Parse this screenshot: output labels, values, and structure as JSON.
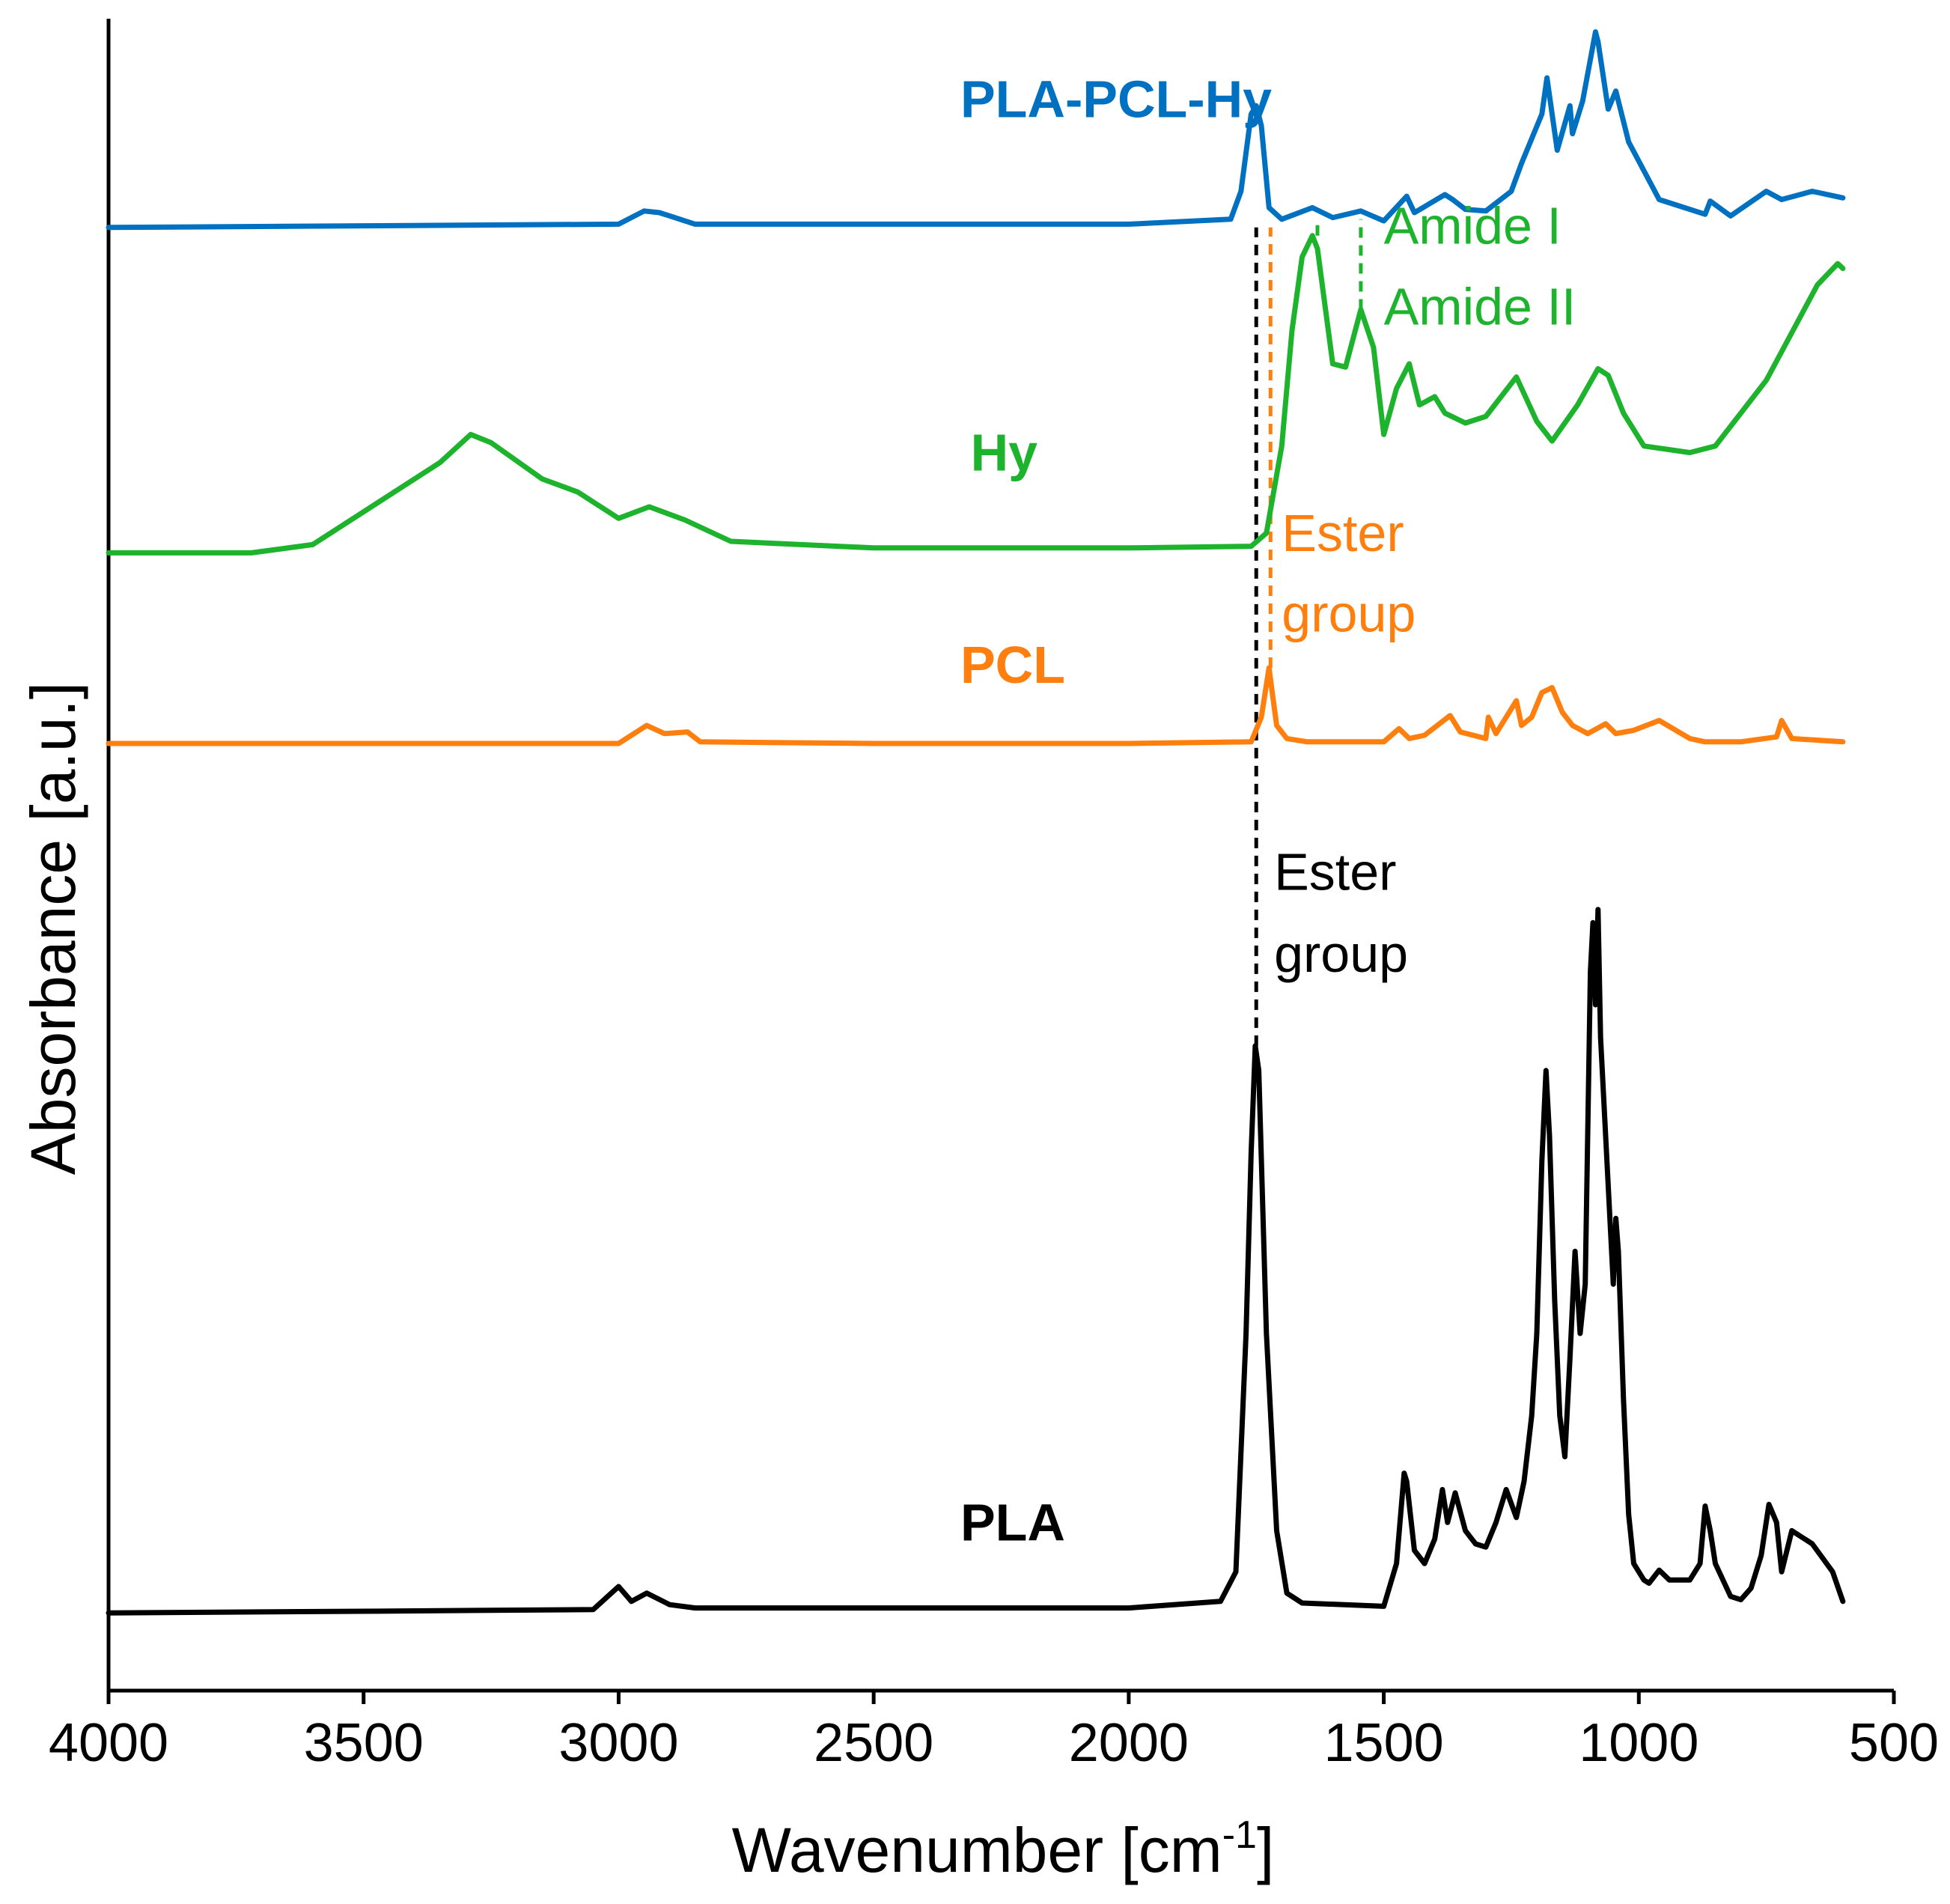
{
  "chart_data": {
    "type": "line",
    "title": "",
    "xlabel": "Wavenumber [cm",
    "xlabel_sup": "-1",
    "xlabel_end": "]",
    "ylabel": "Absorbance [a.u.]",
    "xlim": [
      4000,
      500
    ],
    "ylim": [
      0,
      100
    ],
    "xticks": [
      "4000",
      "3500",
      "3000",
      "2500",
      "2000",
      "1500",
      "1000",
      "500"
    ],
    "xtick_values": [
      4000,
      3500,
      3000,
      2500,
      2000,
      1500,
      1000,
      500
    ],
    "series": [
      {
        "name": "PLA-PCL-Hy",
        "color": "#0070C0",
        "label_pos": [
          2330,
          94
        ],
        "x": [
          4000,
          3500,
          3000,
          2950,
          2920,
          2850,
          2000,
          1800,
          1780,
          1760,
          1750,
          1740,
          1725,
          1700,
          1640,
          1600,
          1545,
          1500,
          1455,
          1440,
          1380,
          1365,
          1340,
          1300,
          1250,
          1230,
          1190,
          1180,
          1160,
          1135,
          1130,
          1110,
          1085,
          1080,
          1060,
          1045,
          1020,
          960,
          870,
          860,
          820,
          750,
          720,
          660,
          600
        ],
        "y": [
          87.3,
          87.4,
          87.5,
          88.3,
          88.2,
          87.5,
          87.5,
          87.8,
          89.5,
          94.2,
          94.7,
          93.5,
          88.5,
          87.8,
          88.5,
          87.9,
          88.3,
          87.7,
          89.2,
          88.2,
          89.3,
          89.0,
          88.4,
          88.3,
          89.5,
          91.2,
          94.2,
          96.4,
          92.0,
          94.7,
          93.0,
          95.0,
          99.2,
          98.6,
          94.5,
          95.6,
          92.5,
          89.0,
          88.1,
          88.9,
          88.0,
          89.5,
          89.0,
          89.5,
          89.1
        ]
      },
      {
        "name": "Hy",
        "color": "#1DB32D",
        "label_pos": [
          2310,
          72.5
        ],
        "x": [
          4000,
          3720,
          3600,
          3450,
          3350,
          3290,
          3250,
          3150,
          3080,
          3000,
          2940,
          2870,
          2780,
          2500,
          2000,
          1760,
          1730,
          1700,
          1680,
          1660,
          1640,
          1630,
          1600,
          1575,
          1545,
          1520,
          1500,
          1475,
          1450,
          1430,
          1400,
          1380,
          1340,
          1300,
          1240,
          1200,
          1170,
          1120,
          1080,
          1060,
          1030,
          990,
          900,
          850,
          750,
          650,
          610,
          600
        ],
        "y": [
          67.5,
          67.5,
          68.0,
          71.0,
          73.0,
          74.7,
          74.2,
          72.0,
          71.2,
          69.6,
          70.3,
          69.5,
          68.2,
          67.8,
          67.8,
          67.9,
          68.7,
          74.0,
          81.0,
          85.5,
          86.8,
          86.0,
          79.0,
          78.8,
          82.3,
          80.0,
          74.7,
          77.5,
          79.0,
          76.5,
          77.0,
          76.0,
          75.4,
          75.8,
          78.2,
          75.5,
          74.3,
          76.5,
          78.7,
          78.3,
          76.0,
          74.0,
          73.6,
          74.0,
          78.0,
          83.8,
          85.1,
          84.8
        ]
      },
      {
        "name": "PCL",
        "color": "#FF7F0E",
        "label_pos": [
          2330,
          59.6
        ],
        "x": [
          4000,
          3500,
          3000,
          2945,
          2910,
          2865,
          2840,
          2500,
          2000,
          1760,
          1740,
          1725,
          1720,
          1710,
          1690,
          1650,
          1600,
          1500,
          1470,
          1450,
          1420,
          1370,
          1350,
          1300,
          1295,
          1280,
          1240,
          1230,
          1210,
          1190,
          1170,
          1150,
          1130,
          1100,
          1065,
          1045,
          1010,
          960,
          900,
          870,
          800,
          730,
          720,
          700,
          600
        ],
        "y": [
          55.9,
          55.9,
          55.9,
          57.0,
          56.5,
          56.6,
          56.0,
          55.9,
          55.9,
          56.0,
          57.5,
          60.5,
          59.3,
          57.0,
          56.2,
          56.0,
          56.0,
          56.0,
          56.8,
          56.2,
          56.4,
          57.6,
          56.6,
          56.2,
          57.5,
          56.5,
          58.5,
          57.0,
          57.5,
          59.0,
          59.3,
          57.8,
          57.0,
          56.5,
          57.1,
          56.5,
          56.7,
          57.3,
          56.2,
          56.0,
          56.0,
          56.3,
          57.3,
          56.2,
          56.0
        ]
      },
      {
        "name": "PLA",
        "color": "#000000",
        "label_pos": [
          2330,
          7.4
        ],
        "x": [
          4000,
          3500,
          3050,
          3000,
          2975,
          2945,
          2900,
          2850,
          2000,
          1820,
          1790,
          1770,
          1760,
          1752,
          1745,
          1730,
          1710,
          1690,
          1660,
          1500,
          1475,
          1460,
          1455,
          1440,
          1420,
          1400,
          1385,
          1375,
          1360,
          1340,
          1320,
          1300,
          1280,
          1260,
          1240,
          1225,
          1210,
          1200,
          1190,
          1182,
          1175,
          1165,
          1155,
          1145,
          1135,
          1125,
          1115,
          1105,
          1095,
          1090,
          1085,
          1080,
          1075,
          1065,
          1050,
          1045,
          1040,
          1030,
          1020,
          1010,
          990,
          980,
          960,
          940,
          900,
          880,
          870,
          860,
          850,
          820,
          800,
          780,
          760,
          745,
          730,
          720,
          700,
          660,
          620,
          600
        ],
        "y": [
          3.0,
          3.1,
          3.2,
          4.6,
          3.7,
          4.2,
          3.5,
          3.3,
          3.3,
          3.7,
          5.5,
          20.0,
          31.0,
          37.5,
          36.0,
          20.0,
          8.0,
          4.2,
          3.6,
          3.4,
          6.0,
          11.5,
          11.0,
          6.8,
          6.0,
          7.5,
          10.5,
          8.5,
          10.3,
          8.0,
          7.2,
          7.0,
          8.5,
          10.5,
          8.8,
          11.0,
          15.0,
          20.0,
          30.5,
          36.0,
          32.0,
          22.0,
          15.0,
          12.5,
          18.5,
          25.0,
          20.0,
          23.0,
          42.0,
          45.0,
          40.0,
          45.8,
          38.0,
          32.0,
          23.0,
          27.0,
          25.0,
          16.0,
          9.0,
          6.0,
          5.0,
          4.8,
          5.6,
          5.0,
          5.0,
          6.0,
          9.5,
          8.0,
          6.0,
          4.0,
          3.8,
          4.5,
          6.5,
          9.6,
          8.5,
          5.5,
          8.0,
          7.2,
          5.5,
          3.7
        ]
      }
    ],
    "reference_lines": [
      {
        "x": 1750,
        "y_from": 37.5,
        "y_to": 87.3,
        "color": "#000000"
      },
      {
        "x": 1722,
        "y_from": 60.5,
        "y_to": 87.3,
        "color": "#FF7F0E"
      },
      {
        "x": 1630,
        "y_from": 86.8,
        "y_to": 87.8,
        "color": "#1DB32D"
      },
      {
        "x": 1545,
        "y_from": 82.3,
        "y_to": 87.8,
        "color": "#1DB32D"
      }
    ],
    "annotations": [
      {
        "text": "Amide I",
        "color": "#1DB32D",
        "x": 1500,
        "y": 86.3
      },
      {
        "text": "Amide II",
        "color": "#1DB32D",
        "x": 1500,
        "y": 81.4
      },
      {
        "text": "Ester",
        "color": "#FF7F0E",
        "x": 1700,
        "y": 67.6
      },
      {
        "text": "group",
        "color": "#FF7F0E",
        "x": 1700,
        "y": 62.7
      },
      {
        "text": "Ester",
        "color": "#000000",
        "x": 1715,
        "y": 47.0
      },
      {
        "text": "group",
        "color": "#000000",
        "x": 1715,
        "y": 42.0
      }
    ]
  }
}
